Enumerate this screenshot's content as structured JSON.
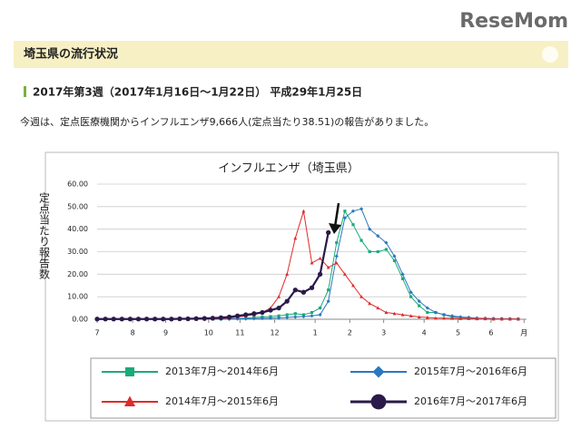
{
  "logo": "ReseMom",
  "header": {
    "title": "埼玉県の流行状況"
  },
  "heading": "2017年第3週（2017年1月16日～1月22日） 平成29年1月25日",
  "paragraph": "今週は、定点医療機関からインフルエンザ9,666人(定点当たり38.51)の報告がありました。",
  "chart_data": {
    "type": "line",
    "title": "インフルエンザ（埼玉県）",
    "y_label": "定点当たり報告数",
    "x": [
      0,
      1,
      2,
      3,
      4,
      5,
      6,
      7,
      8,
      9,
      10,
      11,
      12,
      13,
      14,
      15,
      16,
      17,
      18,
      19,
      20,
      21,
      22,
      23,
      24,
      25,
      26,
      27,
      28,
      29,
      30,
      31,
      32,
      33,
      34,
      35,
      36,
      37,
      38,
      39,
      40,
      41,
      42,
      43,
      44,
      45,
      46,
      47,
      48,
      49,
      50,
      51
    ],
    "xlim": [
      0,
      52
    ],
    "xticks": [
      {
        "value": 0,
        "label": "7"
      },
      {
        "value": 4.3,
        "label": "8"
      },
      {
        "value": 8.3,
        "label": "9"
      },
      {
        "value": 13.5,
        "label": "10"
      },
      {
        "value": 17.3,
        "label": "11"
      },
      {
        "value": 21.5,
        "label": "12"
      },
      {
        "value": 26.4,
        "label": "1"
      },
      {
        "value": 30.6,
        "label": "2"
      },
      {
        "value": 34.7,
        "label": "3"
      },
      {
        "value": 39.6,
        "label": "4"
      },
      {
        "value": 43.7,
        "label": "5"
      },
      {
        "value": 47.7,
        "label": "6"
      },
      {
        "value": 51.7,
        "label": "月"
      }
    ],
    "ylim": [
      0,
      60
    ],
    "yticks": [
      {
        "value": 0,
        "label": "0.00"
      },
      {
        "value": 10,
        "label": "10.00"
      },
      {
        "value": 20,
        "label": "20.00"
      },
      {
        "value": 30,
        "label": "30.00"
      },
      {
        "value": 40,
        "label": "40.00"
      },
      {
        "value": 50,
        "label": "50.00"
      },
      {
        "value": 60,
        "label": "60.00"
      }
    ],
    "grid": true,
    "series": [
      {
        "name": "2013年7月～2014年6月",
        "color": "#1aaa7a",
        "marker": "square",
        "values": [
          0,
          0,
          0,
          0,
          0,
          0,
          0,
          0,
          0,
          0,
          0,
          0,
          0,
          0,
          0.1,
          0.1,
          0.2,
          0.3,
          0.5,
          0.8,
          1,
          1.2,
          1.5,
          2,
          2.5,
          2,
          3,
          5,
          13,
          34,
          48,
          42,
          35,
          30,
          30,
          31,
          26,
          18,
          10,
          6,
          3,
          3,
          2,
          1,
          0.8,
          0.5,
          0.3,
          0.3,
          0.2,
          0.2,
          0.1,
          0.1
        ]
      },
      {
        "name": "2015年7月～2016年6月",
        "color": "#2a78c0",
        "marker": "diamond",
        "values": [
          0,
          0,
          0,
          0,
          0,
          0,
          0,
          0,
          0,
          0,
          0,
          0,
          0,
          0,
          0.1,
          0.1,
          0.1,
          0.2,
          0.2,
          0.3,
          0.4,
          0.5,
          0.6,
          0.8,
          1,
          1.2,
          1.5,
          2,
          8,
          28,
          45,
          48,
          49,
          40,
          37,
          34,
          28,
          20,
          12,
          8,
          5,
          3,
          2,
          1.5,
          1,
          0.8,
          0.5,
          0.4,
          0.3,
          0.2,
          0.2,
          0.1
        ]
      },
      {
        "name": "2014年7月～2015年6月",
        "color": "#e02a2a",
        "marker": "triangle",
        "values": [
          0,
          0,
          0,
          0,
          0,
          0,
          0,
          0,
          0,
          0,
          0,
          0,
          0,
          0,
          0.2,
          0.3,
          0.5,
          1,
          1.5,
          2,
          3,
          5,
          10,
          20,
          36,
          48,
          25,
          27,
          23,
          25,
          20,
          15,
          10,
          7,
          5,
          3,
          2.5,
          2,
          1.5,
          1,
          0.8,
          0.5,
          0.5,
          0.4,
          0.3,
          0.3,
          0.2,
          0.2,
          0.1,
          0.1,
          0.1,
          0.1
        ]
      },
      {
        "name": "2016年7月～2017年6月",
        "color": "#2a1a4a",
        "marker": "circle",
        "values": [
          0.1,
          0.1,
          0.1,
          0.1,
          0.1,
          0.1,
          0.1,
          0.1,
          0.1,
          0.1,
          0.2,
          0.2,
          0.3,
          0.4,
          0.5,
          0.7,
          1,
          1.5,
          2,
          2.5,
          3,
          4,
          5,
          8,
          13,
          12,
          14,
          20,
          38.51,
          null,
          null,
          null,
          null,
          null,
          null,
          null,
          null,
          null,
          null,
          null,
          null,
          null,
          null,
          null,
          null,
          null,
          null,
          null,
          null,
          null,
          null,
          null
        ]
      }
    ]
  }
}
